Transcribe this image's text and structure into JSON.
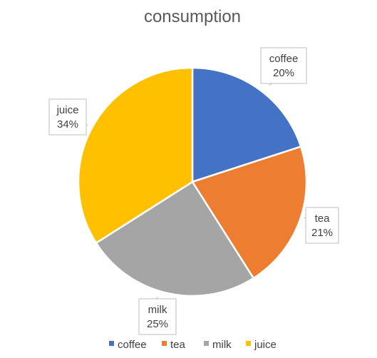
{
  "chart_data": {
    "type": "pie",
    "title": "consumption",
    "categories": [
      "coffee",
      "tea",
      "milk",
      "juice"
    ],
    "values": [
      20,
      21,
      25,
      34
    ],
    "data_labels": [
      "20%",
      "21%",
      "25%",
      "34%"
    ],
    "colors": [
      "#4472C4",
      "#ED7D31",
      "#A5A5A5",
      "#FFC000"
    ],
    "start_angle_deg": 0,
    "direction": "clockwise",
    "legend": "bottom",
    "data_label_style": "callout"
  }
}
